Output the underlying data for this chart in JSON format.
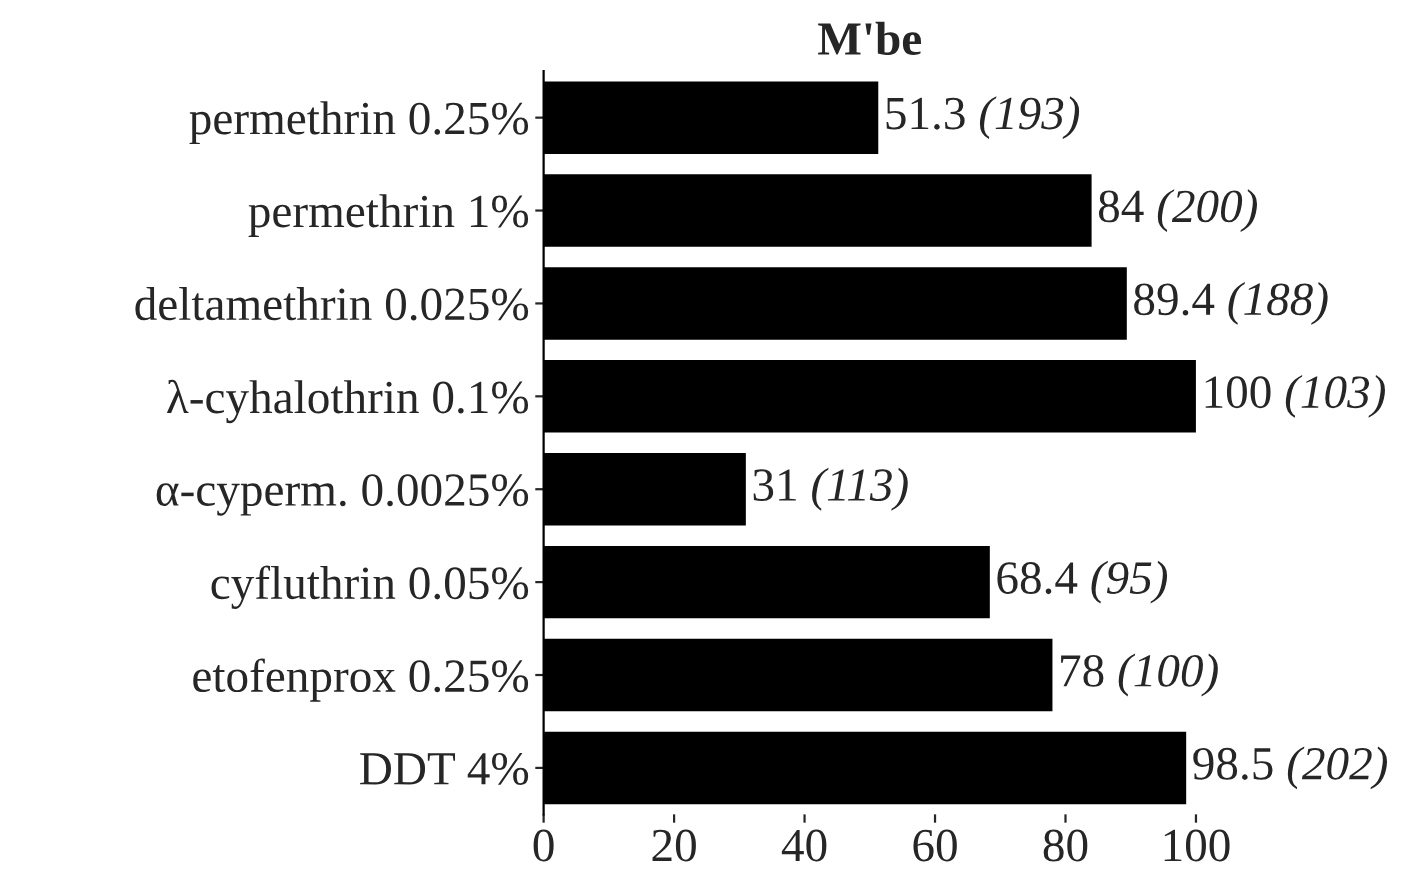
{
  "chart_data": {
    "type": "bar",
    "orientation": "horizontal",
    "title": "M'be",
    "categories": [
      "permethrin 0.25%",
      "permethrin 1%",
      "deltamethrin 0.025%",
      "λ-cyhalothrin 0.1%",
      "α-cyperm. 0.0025%",
      "cyfluthrin 0.05%",
      "etofenprox 0.25%",
      "DDT 4%"
    ],
    "values": [
      51.3,
      84,
      89.4,
      100,
      31,
      68.4,
      78,
      98.5
    ],
    "value_labels": [
      "51.3 (193)",
      "84 (200)",
      "89.4 (188)",
      "100 (103)",
      "31 (113)",
      "68.4 (95)",
      "78 (100)",
      "98.5 (202)"
    ],
    "color": "#000000",
    "xlim": [
      0,
      100
    ],
    "xticks": [
      0,
      20,
      40,
      60,
      80,
      100
    ],
    "grid": false
  }
}
